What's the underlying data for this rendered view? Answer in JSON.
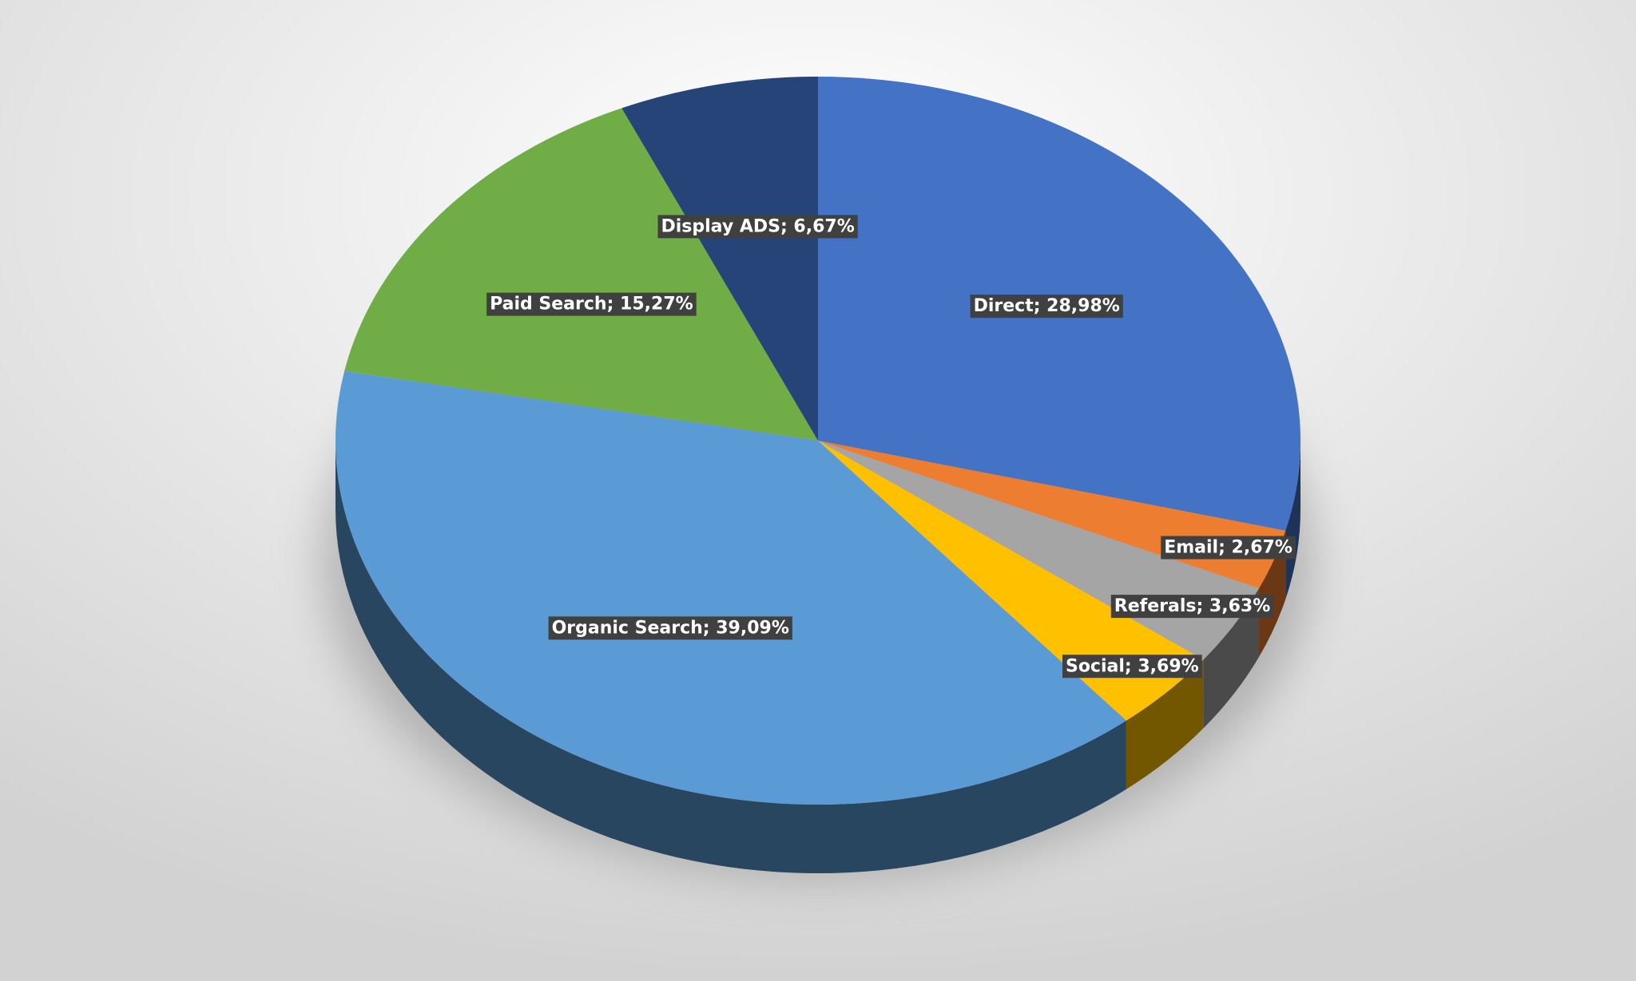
{
  "chart_data": {
    "type": "pie",
    "values": [
      28.98,
      2.67,
      3.63,
      3.69,
      39.09,
      15.27,
      6.67
    ],
    "value_labels": [
      "Direct; 28,98%",
      "Email; 2,67%",
      "Referals; 3,63%",
      "Social; 3,69%",
      "Organic Search; 39,09%",
      "Paid Search; 15,27%",
      "Display ADS; 6,67%"
    ],
    "colors": [
      "#4472c4",
      "#ed7d31",
      "#a5a5a5",
      "#ffc000",
      "#5b9bd5",
      "#70ad47",
      "#264478"
    ]
  }
}
